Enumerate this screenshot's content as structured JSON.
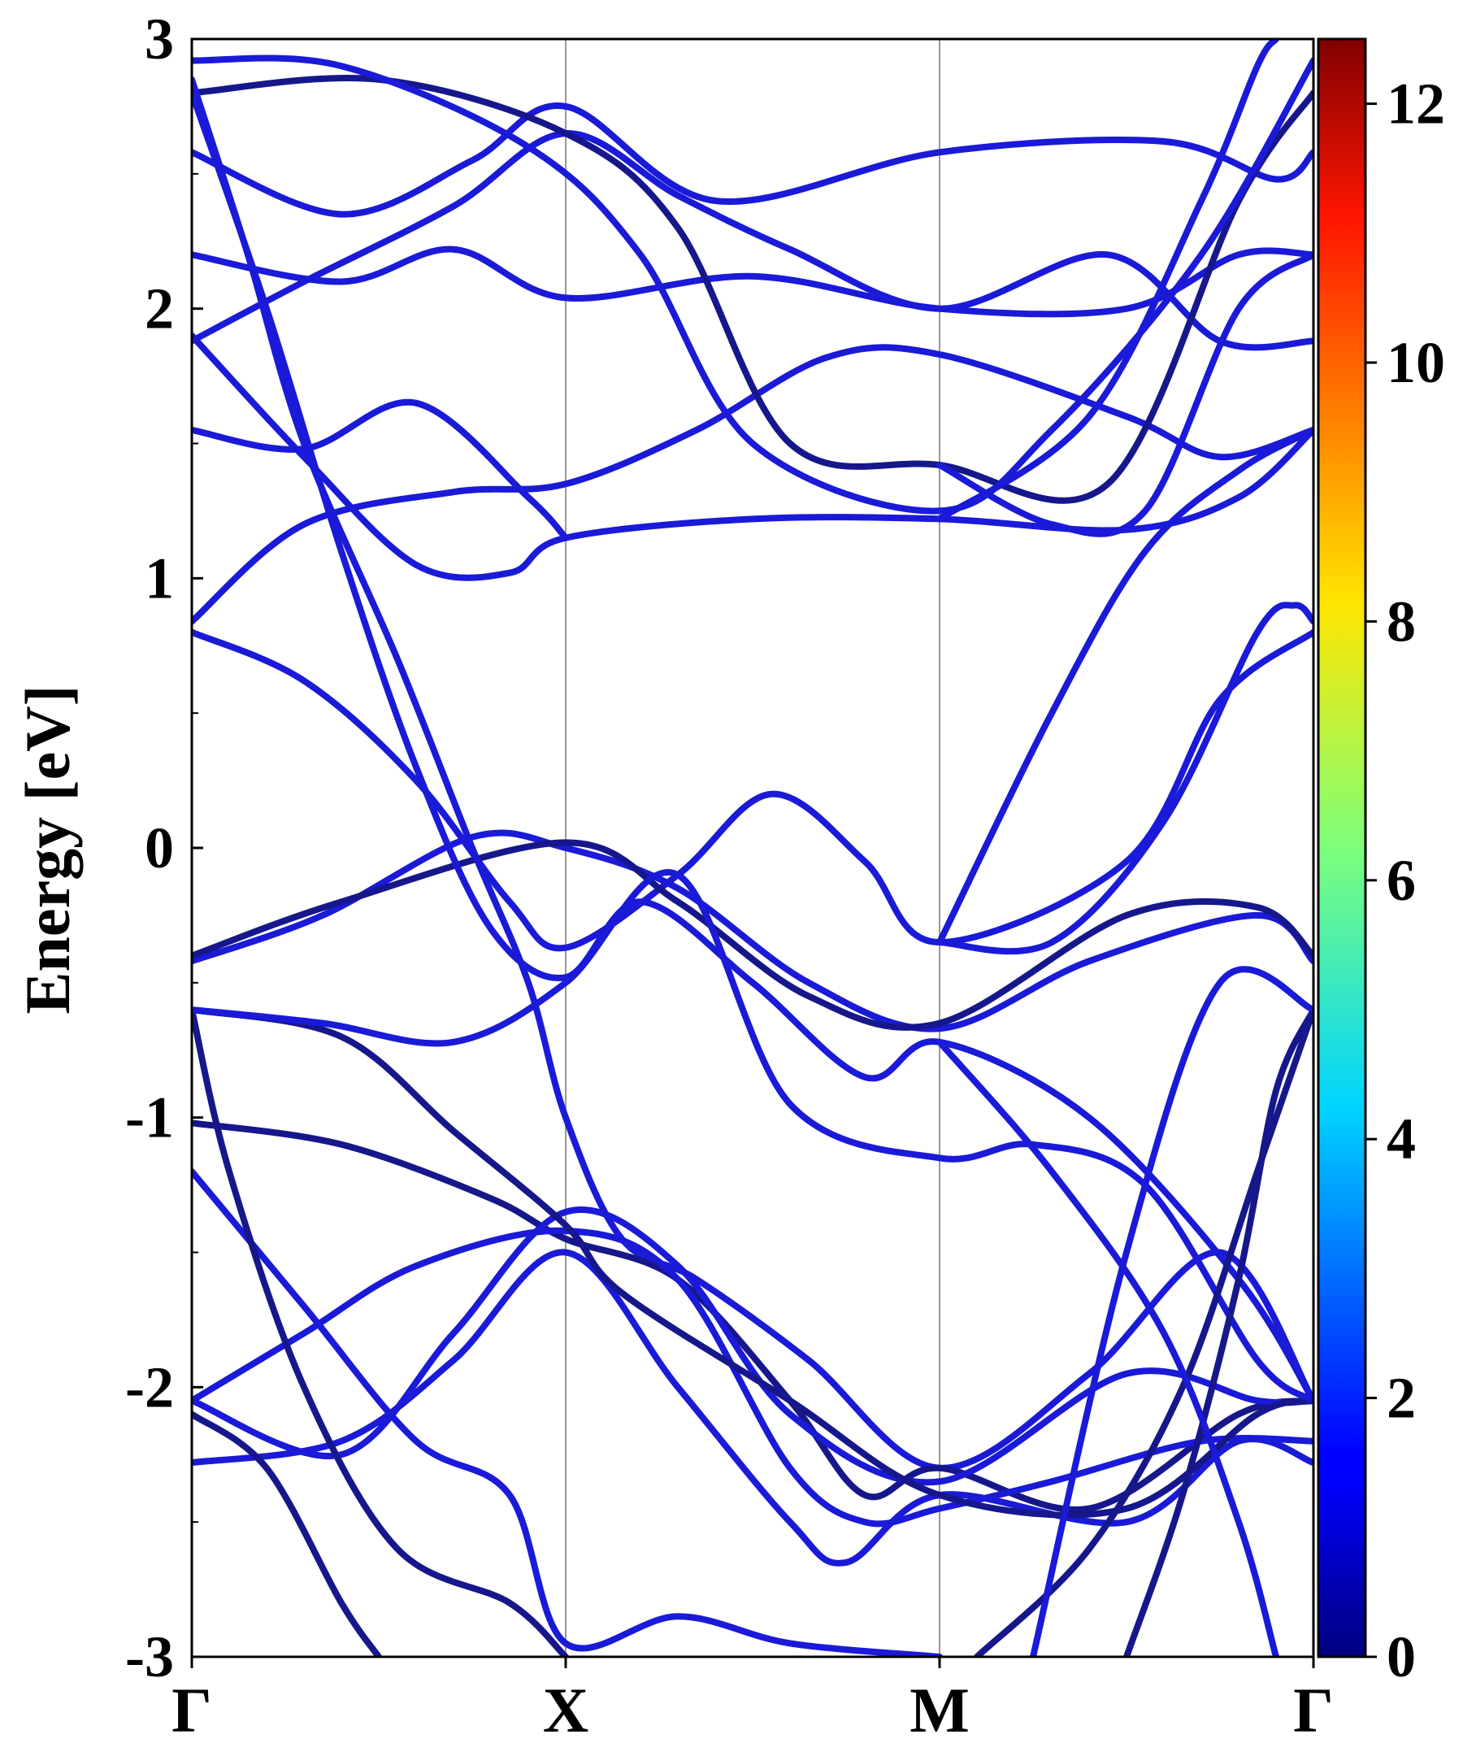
{
  "chart_data": {
    "type": "line",
    "title": "",
    "xlabel": "",
    "ylabel": "Energy [eV]",
    "ylim": [
      -3,
      3
    ],
    "xlim": [
      0,
      3
    ],
    "x_ticks": [
      {
        "x": 0,
        "label": "Γ"
      },
      {
        "x": 1,
        "label": "X"
      },
      {
        "x": 2,
        "label": "M"
      },
      {
        "x": 3,
        "label": "Γ"
      }
    ],
    "y_ticks": [
      {
        "y": 3,
        "label": "3"
      },
      {
        "y": 2,
        "label": "2"
      },
      {
        "y": 1,
        "label": "1"
      },
      {
        "y": 0,
        "label": "0"
      },
      {
        "y": -1,
        "label": "-1"
      },
      {
        "y": -2,
        "label": "-2"
      },
      {
        "y": -3,
        "label": "-3"
      }
    ],
    "colorbar": {
      "colormap": "jet",
      "range": [
        0,
        12.5
      ],
      "ticks": [
        {
          "v": 0,
          "label": "0"
        },
        {
          "v": 2,
          "label": "2"
        },
        {
          "v": 4,
          "label": "4"
        },
        {
          "v": 6,
          "label": "6"
        },
        {
          "v": 8,
          "label": "8"
        },
        {
          "v": 10,
          "label": "10"
        },
        {
          "v": 12,
          "label": "12"
        }
      ]
    },
    "line_colors": {
      "bright": "#1a1ad8",
      "dark": "#17178c"
    },
    "series": [
      {
        "tone": "bright",
        "points": [
          [
            0,
            0.84
          ],
          [
            0.3,
            1.2
          ],
          [
            0.7,
            1.32
          ],
          [
            1,
            1.35
          ],
          [
            1.35,
            1.55
          ],
          [
            1.7,
            1.82
          ],
          [
            2,
            1.83
          ],
          [
            2.5,
            1.6
          ],
          [
            2.75,
            1.45
          ],
          [
            3,
            1.55
          ]
        ]
      },
      {
        "tone": "bright",
        "points": [
          [
            0,
            0.8
          ],
          [
            0.3,
            0.62
          ],
          [
            0.6,
            0.25
          ],
          [
            0.85,
            -0.2
          ],
          [
            1,
            -0.37
          ],
          [
            1.3,
            -0.1
          ],
          [
            1.55,
            0.2
          ],
          [
            1.8,
            -0.05
          ],
          [
            2,
            -0.35
          ],
          [
            2.5,
            -0.05
          ],
          [
            2.75,
            0.55
          ],
          [
            3,
            0.8
          ]
        ]
      },
      {
        "tone": "bright",
        "points": [
          [
            0,
            -0.42
          ],
          [
            0.35,
            -0.25
          ],
          [
            0.75,
            0.04
          ],
          [
            1,
            0.0
          ],
          [
            1.3,
            -0.15
          ],
          [
            1.65,
            -0.5
          ],
          [
            2,
            -0.67
          ],
          [
            2.4,
            -0.42
          ],
          [
            2.85,
            -0.25
          ],
          [
            3,
            -0.42
          ]
        ]
      },
      {
        "tone": "dark",
        "points": [
          [
            0,
            -0.4
          ],
          [
            0.4,
            -0.2
          ],
          [
            1,
            0.02
          ],
          [
            1.3,
            -0.2
          ],
          [
            1.65,
            -0.55
          ],
          [
            2,
            -0.65
          ],
          [
            2.5,
            -0.25
          ],
          [
            2.85,
            -0.22
          ],
          [
            3,
            -0.4
          ]
        ]
      },
      {
        "tone": "bright",
        "points": [
          [
            0,
            1.88
          ],
          [
            0.3,
            2.1
          ],
          [
            0.7,
            2.38
          ],
          [
            1,
            2.65
          ],
          [
            1.3,
            2.42
          ],
          [
            1.6,
            2.22
          ],
          [
            2,
            2.0
          ],
          [
            2.45,
            2.2
          ],
          [
            2.75,
            1.88
          ],
          [
            3,
            1.88
          ]
        ]
      },
      {
        "tone": "bright",
        "points": [
          [
            0,
            1.9
          ],
          [
            0.3,
            1.45
          ],
          [
            0.6,
            1.05
          ],
          [
            0.85,
            1.02
          ],
          [
            1,
            1.15
          ],
          [
            1.5,
            1.22
          ],
          [
            2,
            1.22
          ],
          [
            2.5,
            1.18
          ],
          [
            2.8,
            1.3
          ],
          [
            3,
            1.55
          ]
        ]
      },
      {
        "tone": "bright",
        "points": [
          [
            0,
            2.58
          ],
          [
            0.4,
            2.35
          ],
          [
            0.75,
            2.55
          ],
          [
            1,
            2.75
          ],
          [
            1.4,
            2.4
          ],
          [
            2,
            2.58
          ],
          [
            2.6,
            2.62
          ],
          [
            2.9,
            2.48
          ],
          [
            3,
            2.58
          ]
        ]
      },
      {
        "tone": "bright",
        "points": [
          [
            0,
            2.2
          ],
          [
            0.4,
            2.1
          ],
          [
            0.7,
            2.22
          ],
          [
            1,
            2.04
          ],
          [
            1.5,
            2.12
          ],
          [
            2,
            2.0
          ],
          [
            2.5,
            2.0
          ],
          [
            2.8,
            2.2
          ],
          [
            3,
            2.2
          ]
        ]
      },
      {
        "tone": "bright",
        "points": [
          [
            0,
            1.55
          ],
          [
            0.3,
            1.48
          ],
          [
            0.6,
            1.65
          ],
          [
            0.9,
            1.3
          ],
          [
            1,
            1.15
          ]
        ]
      },
      {
        "tone": "dark",
        "points": [
          [
            0,
            2.8
          ],
          [
            0.5,
            2.85
          ],
          [
            1,
            2.65
          ],
          [
            1.3,
            2.3
          ],
          [
            1.6,
            1.5
          ],
          [
            2,
            1.42
          ],
          [
            2.45,
            1.35
          ],
          [
            2.8,
            2.4
          ],
          [
            3,
            2.8
          ]
        ]
      },
      {
        "tone": "bright",
        "points": [
          [
            0,
            2.92
          ],
          [
            0.4,
            2.9
          ],
          [
            0.9,
            2.6
          ],
          [
            1.2,
            2.2
          ],
          [
            1.5,
            1.5
          ],
          [
            2,
            1.25
          ],
          [
            2.3,
            1.55
          ],
          [
            2.7,
            2.2
          ],
          [
            3,
            2.92
          ]
        ]
      },
      {
        "tone": "bright",
        "points": [
          [
            0,
            2.85
          ],
          [
            0.15,
            2.2
          ],
          [
            0.3,
            1.5
          ],
          [
            0.55,
            0.7
          ],
          [
            0.75,
            0.0
          ],
          [
            0.9,
            -0.5
          ],
          [
            1,
            -1.0
          ],
          [
            1.15,
            -1.45
          ],
          [
            1.35,
            -1.6
          ],
          [
            1.65,
            -1.9
          ],
          [
            2,
            -2.3
          ],
          [
            2.4,
            -1.95
          ],
          [
            2.75,
            -1.5
          ],
          [
            3,
            -2.05
          ]
        ]
      },
      {
        "tone": "bright",
        "points": [
          [
            0,
            2.8
          ],
          [
            0.2,
            2.0
          ],
          [
            0.4,
            1.1
          ],
          [
            0.6,
            0.3
          ],
          [
            0.8,
            -0.3
          ],
          [
            1,
            -0.48
          ],
          [
            1.2,
            -0.2
          ],
          [
            1.5,
            -0.5
          ],
          [
            1.8,
            -0.85
          ],
          [
            2,
            -0.72
          ],
          [
            2.4,
            -1.0
          ],
          [
            2.8,
            -1.6
          ],
          [
            3,
            -2.05
          ]
        ]
      },
      {
        "tone": "dark",
        "points": [
          [
            0,
            -1.02
          ],
          [
            0.4,
            -1.1
          ],
          [
            0.8,
            -1.3
          ],
          [
            1,
            -1.45
          ],
          [
            1.3,
            -1.6
          ],
          [
            1.6,
            -2.05
          ],
          [
            1.8,
            -2.4
          ],
          [
            2,
            -2.3
          ],
          [
            2.4,
            -2.45
          ],
          [
            2.8,
            -2.1
          ],
          [
            3,
            -2.05
          ]
        ]
      },
      {
        "tone": "bright",
        "points": [
          [
            0,
            -1.2
          ],
          [
            0.3,
            -1.7
          ],
          [
            0.6,
            -2.2
          ],
          [
            0.85,
            -2.4
          ],
          [
            1,
            -2.95
          ],
          [
            1.3,
            -2.85
          ],
          [
            1.6,
            -2.95
          ],
          [
            2,
            -3.0
          ]
        ]
      },
      {
        "tone": "bright",
        "points": [
          [
            0,
            -2.05
          ],
          [
            0.3,
            -1.8
          ],
          [
            0.6,
            -1.55
          ],
          [
            1,
            -1.42
          ],
          [
            1.3,
            -1.6
          ],
          [
            1.6,
            -2.3
          ],
          [
            1.8,
            -2.5
          ],
          [
            2,
            -2.45
          ],
          [
            2.3,
            -2.35
          ],
          [
            2.7,
            -2.2
          ],
          [
            3,
            -2.2
          ]
        ]
      },
      {
        "tone": "bright",
        "points": [
          [
            0,
            -2.05
          ],
          [
            0.4,
            -2.25
          ],
          [
            0.7,
            -1.8
          ],
          [
            1,
            -1.35
          ],
          [
            1.3,
            -1.55
          ],
          [
            1.6,
            -2.1
          ],
          [
            2,
            -2.35
          ],
          [
            2.5,
            -1.95
          ],
          [
            2.85,
            -2.05
          ],
          [
            3,
            -2.05
          ]
        ]
      },
      {
        "tone": "bright",
        "points": [
          [
            0,
            -2.28
          ],
          [
            0.4,
            -2.2
          ],
          [
            0.7,
            -1.9
          ],
          [
            1,
            -1.5
          ],
          [
            1.3,
            -2.0
          ],
          [
            1.6,
            -2.5
          ],
          [
            1.75,
            -2.65
          ],
          [
            2,
            -2.4
          ],
          [
            2.5,
            -2.5
          ],
          [
            2.8,
            -2.2
          ],
          [
            3,
            -2.28
          ]
        ]
      },
      {
        "tone": "dark",
        "points": [
          [
            0,
            -0.6
          ],
          [
            0.4,
            -0.7
          ],
          [
            0.7,
            -1.05
          ],
          [
            1,
            -1.4
          ],
          [
            1.15,
            -1.65
          ],
          [
            1.6,
            -2.05
          ],
          [
            2,
            -2.4
          ],
          [
            2.5,
            -2.45
          ],
          [
            2.85,
            -2.1
          ],
          [
            3,
            -2.05
          ]
        ]
      },
      {
        "tone": "dark",
        "points": [
          [
            0,
            -0.6
          ],
          [
            0.1,
            -1.2
          ],
          [
            0.3,
            -2.0
          ],
          [
            0.55,
            -2.6
          ],
          [
            0.85,
            -2.8
          ],
          [
            1,
            -3.0
          ]
        ]
      },
      {
        "tone": "bright",
        "points": [
          [
            0,
            -0.6
          ],
          [
            0.35,
            -0.65
          ],
          [
            0.7,
            -0.72
          ],
          [
            1,
            -0.5
          ],
          [
            1.3,
            -0.1
          ],
          [
            1.6,
            -0.95
          ],
          [
            2,
            -1.15
          ],
          [
            2.25,
            -1.1
          ],
          [
            2.55,
            -1.25
          ],
          [
            2.85,
            -1.9
          ],
          [
            3,
            -2.05
          ]
        ]
      },
      {
        "tone": "dark",
        "points": [
          [
            0,
            -2.1
          ],
          [
            0.2,
            -2.3
          ],
          [
            0.4,
            -2.8
          ],
          [
            0.5,
            -3.0
          ]
        ]
      },
      {
        "tone": "dark",
        "points": [
          [
            2.5,
            -3.0
          ],
          [
            2.65,
            -2.4
          ],
          [
            2.8,
            -1.6
          ],
          [
            2.9,
            -0.9
          ],
          [
            3,
            -0.6
          ]
        ]
      },
      {
        "tone": "dark",
        "points": [
          [
            2.1,
            -3.0
          ],
          [
            2.4,
            -2.6
          ],
          [
            2.65,
            -2.0
          ],
          [
            2.85,
            -1.2
          ],
          [
            3,
            -0.6
          ]
        ]
      },
      {
        "tone": "bright",
        "points": [
          [
            2,
            -0.35
          ],
          [
            2.3,
            0.5
          ],
          [
            2.55,
            1.1
          ],
          [
            2.8,
            1.4
          ],
          [
            3,
            1.55
          ]
        ]
      },
      {
        "tone": "bright",
        "points": [
          [
            2.25,
            -3.0
          ],
          [
            2.5,
            -1.5
          ],
          [
            2.75,
            -0.5
          ],
          [
            3,
            -0.6
          ]
        ]
      },
      {
        "tone": "bright",
        "points": [
          [
            2,
            -0.72
          ],
          [
            2.3,
            -1.2
          ],
          [
            2.6,
            -1.8
          ],
          [
            2.8,
            -2.5
          ],
          [
            2.9,
            -3.0
          ]
        ]
      },
      {
        "tone": "bright",
        "points": [
          [
            2,
            -0.35
          ],
          [
            2.3,
            -0.35
          ],
          [
            2.6,
            0.1
          ],
          [
            2.85,
            0.8
          ],
          [
            2.95,
            0.9
          ],
          [
            3,
            0.84
          ]
        ]
      },
      {
        "tone": "bright",
        "points": [
          [
            2,
            1.42
          ],
          [
            2.3,
            1.2
          ],
          [
            2.55,
            1.25
          ],
          [
            2.8,
            2.0
          ],
          [
            3,
            2.2
          ]
        ]
      },
      {
        "tone": "bright",
        "points": [
          [
            2,
            1.22
          ],
          [
            2.4,
            1.6
          ],
          [
            2.7,
            2.4
          ],
          [
            2.85,
            2.9
          ],
          [
            2.9,
            3.0
          ]
        ]
      }
    ]
  }
}
